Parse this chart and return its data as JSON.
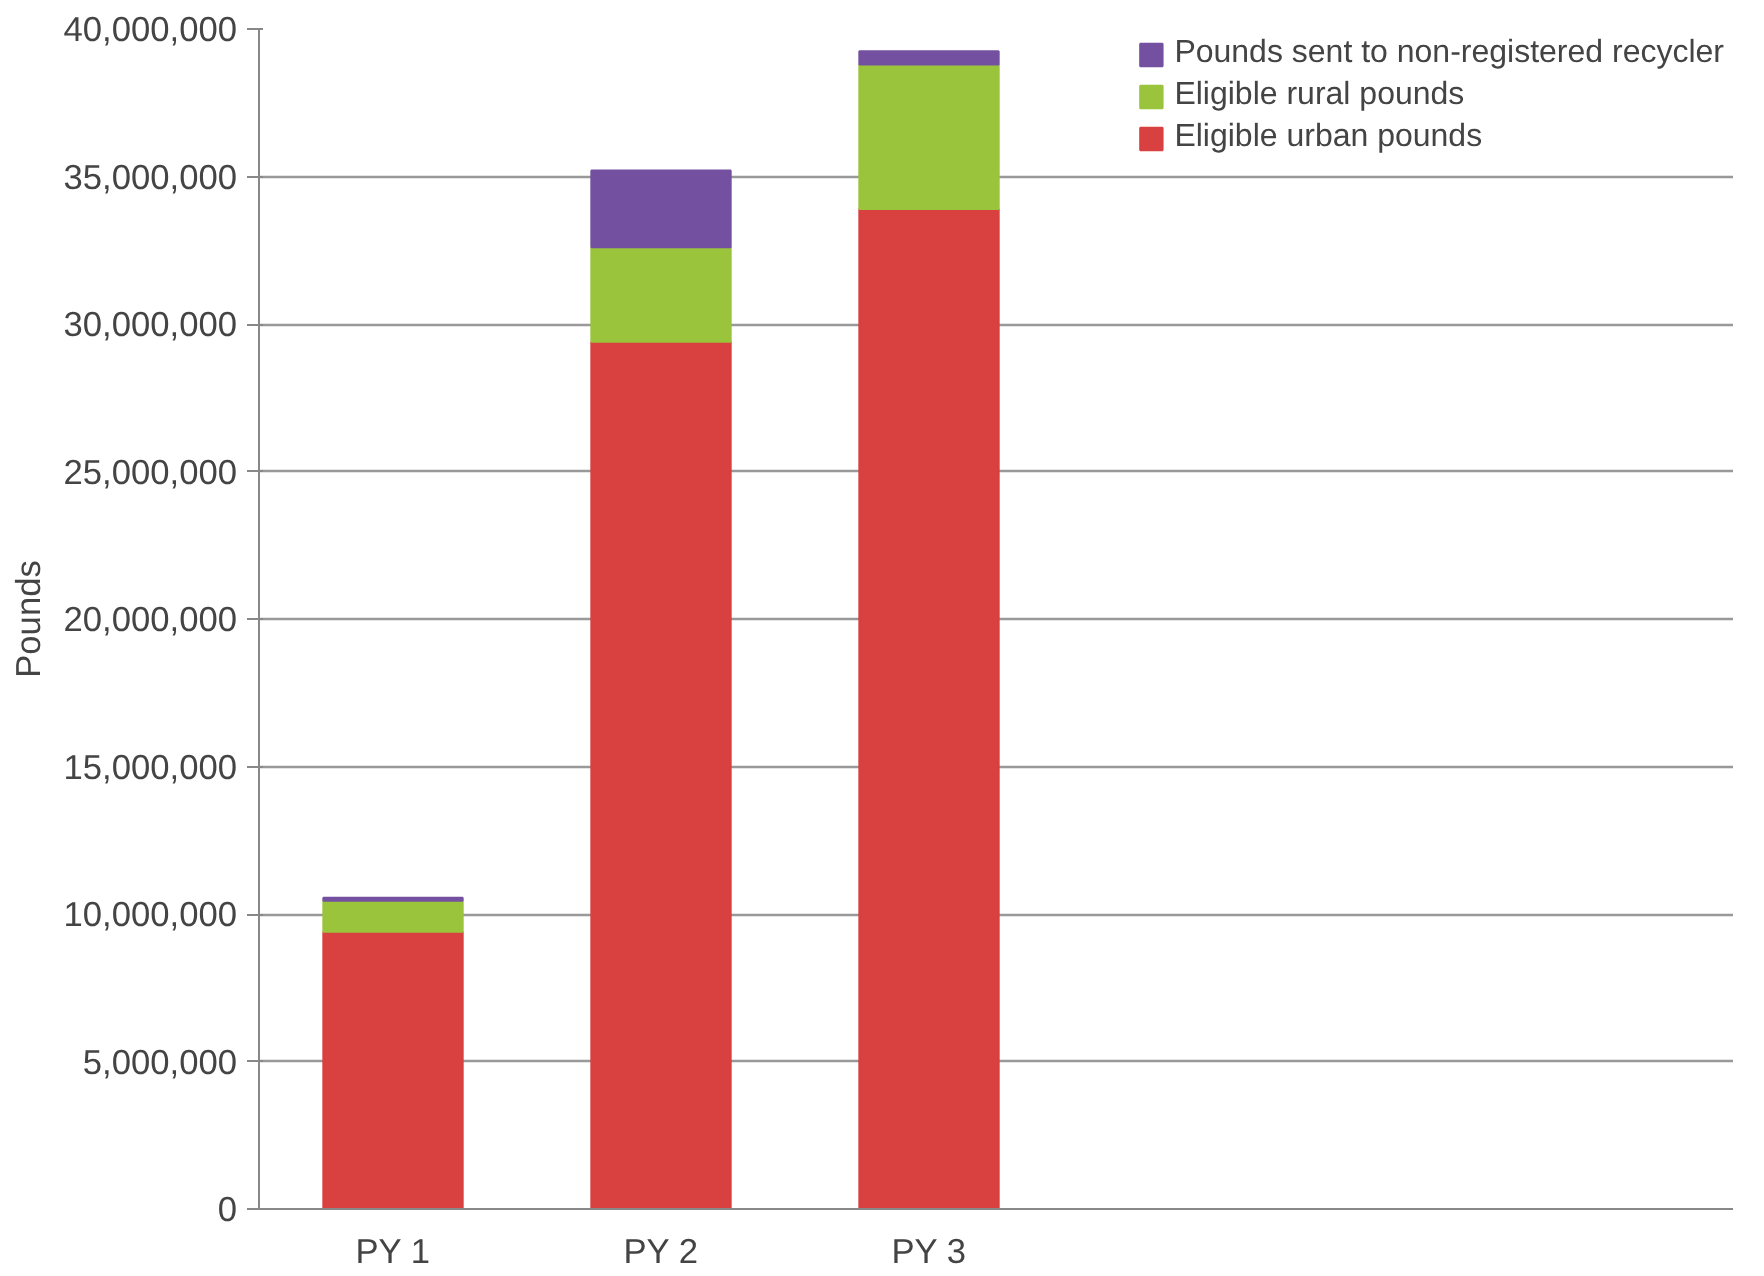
{
  "chart_data": {
    "type": "bar",
    "stacked": true,
    "categories": [
      "PY 1",
      "PY 2",
      "PY 3"
    ],
    "ylabel": "Pounds",
    "series": [
      {
        "name": "Eligible urban pounds",
        "color": "#d94040",
        "values": [
          9400000,
          29400000,
          33900000
        ]
      },
      {
        "name": "Eligible rural pounds",
        "color": "#9ac43c",
        "values": [
          1050000,
          3200000,
          4900000
        ]
      },
      {
        "name": "Pounds sent to non-registered recycler",
        "color": "#7450a0",
        "values": [
          100000,
          2600000,
          450000
        ]
      }
    ],
    "ylim": [
      0,
      40000000
    ],
    "yticks": [
      {
        "value": 0,
        "label": "0"
      },
      {
        "value": 5000000,
        "label": "5,000,000"
      },
      {
        "value": 10000000,
        "label": "10,000,000"
      },
      {
        "value": 15000000,
        "label": "15,000,000"
      },
      {
        "value": 20000000,
        "label": "20,000,000"
      },
      {
        "value": 25000000,
        "label": "25,000,000"
      },
      {
        "value": 30000000,
        "label": "30,000,000"
      },
      {
        "value": 35000000,
        "label": "35,000,000"
      },
      {
        "value": 40000000,
        "label": "40,000,000"
      }
    ],
    "grid": "y",
    "legend": "top right"
  }
}
